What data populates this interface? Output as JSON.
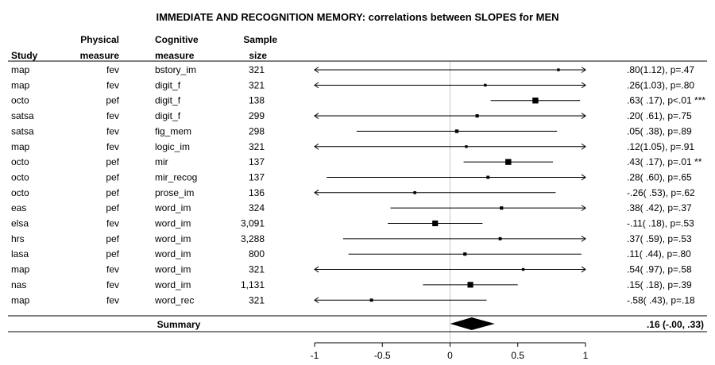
{
  "chart_data": {
    "type": "forest",
    "title": "IMMEDIATE AND RECOGNITION MEMORY: correlations between SLOPES for MEN",
    "headers": {
      "study": "Study",
      "physical": [
        "Physical",
        "measure"
      ],
      "cognitive": [
        "Cognitive",
        "measure"
      ],
      "sample": [
        "Sample",
        "size"
      ]
    },
    "xlim": [
      -1,
      1
    ],
    "ticks": [
      {
        "value": -1,
        "label": "-1"
      },
      {
        "value": -0.5,
        "label": "-0.5"
      },
      {
        "value": 0,
        "label": "0"
      },
      {
        "value": 0.5,
        "label": "0.5"
      },
      {
        "value": 1,
        "label": "1"
      }
    ],
    "rows": [
      {
        "study": "map",
        "physical": "fev",
        "cognitive": "bstory_im",
        "n": "321",
        "est": 0.8,
        "lo": -1.0,
        "hi": 1.0,
        "arrow_left": true,
        "arrow_right": true,
        "weight": 0.15,
        "label": ".80(1.12), p=.47"
      },
      {
        "study": "map",
        "physical": "fev",
        "cognitive": "digit_f",
        "n": "321",
        "est": 0.26,
        "lo": -1.0,
        "hi": 1.0,
        "arrow_left": true,
        "arrow_right": true,
        "weight": 0.15,
        "label": ".26(1.03), p=.80"
      },
      {
        "study": "octo",
        "physical": "pef",
        "cognitive": "digit_f",
        "n": "138",
        "est": 0.63,
        "lo": 0.3,
        "hi": 0.96,
        "arrow_left": false,
        "arrow_right": false,
        "weight": 0.9,
        "label": ".63( .17), p<.01 ***"
      },
      {
        "study": "satsa",
        "physical": "fev",
        "cognitive": "digit_f",
        "n": "299",
        "est": 0.2,
        "lo": -1.0,
        "hi": 1.0,
        "arrow_left": true,
        "arrow_right": true,
        "weight": 0.3,
        "label": ".20( .61), p=.75"
      },
      {
        "study": "satsa",
        "physical": "fev",
        "cognitive": "fig_mem",
        "n": "298",
        "est": 0.05,
        "lo": -0.69,
        "hi": 0.79,
        "arrow_left": false,
        "arrow_right": false,
        "weight": 0.35,
        "label": ".05( .38), p=.89"
      },
      {
        "study": "map",
        "physical": "fev",
        "cognitive": "logic_im",
        "n": "321",
        "est": 0.12,
        "lo": -1.0,
        "hi": 1.0,
        "arrow_left": true,
        "arrow_right": true,
        "weight": 0.15,
        "label": ".12(1.05), p=.91"
      },
      {
        "study": "octo",
        "physical": "pef",
        "cognitive": "mir",
        "n": "137",
        "est": 0.43,
        "lo": 0.1,
        "hi": 0.76,
        "arrow_left": false,
        "arrow_right": false,
        "weight": 0.9,
        "label": ".43( .17), p=.01 **"
      },
      {
        "study": "octo",
        "physical": "pef",
        "cognitive": "mir_recog",
        "n": "137",
        "est": 0.28,
        "lo": -0.91,
        "hi": 1.0,
        "arrow_left": false,
        "arrow_right": true,
        "weight": 0.25,
        "label": ".28( .60), p=.65"
      },
      {
        "study": "octo",
        "physical": "pef",
        "cognitive": "prose_im",
        "n": "136",
        "est": -0.26,
        "lo": -1.0,
        "hi": 0.78,
        "arrow_left": true,
        "arrow_right": false,
        "weight": 0.2,
        "label": "-.26( .53), p=.62"
      },
      {
        "study": "eas",
        "physical": "pef",
        "cognitive": "word_im",
        "n": "324",
        "est": 0.38,
        "lo": -0.44,
        "hi": 1.0,
        "arrow_left": false,
        "arrow_right": true,
        "weight": 0.3,
        "label": ".38( .42), p=.37"
      },
      {
        "study": "elsa",
        "physical": "fev",
        "cognitive": "word_im",
        "n": "3,091",
        "est": -0.11,
        "lo": -0.46,
        "hi": 0.24,
        "arrow_left": false,
        "arrow_right": false,
        "weight": 0.85,
        "label": "-.11( .18), p=.53"
      },
      {
        "study": "hrs",
        "physical": "pef",
        "cognitive": "word_im",
        "n": "3,288",
        "est": 0.37,
        "lo": -0.79,
        "hi": 1.0,
        "arrow_left": false,
        "arrow_right": true,
        "weight": 0.25,
        "label": ".37( .59), p=.53"
      },
      {
        "study": "lasa",
        "physical": "pef",
        "cognitive": "word_im",
        "n": "800",
        "est": 0.11,
        "lo": -0.75,
        "hi": 0.97,
        "arrow_left": false,
        "arrow_right": false,
        "weight": 0.3,
        "label": ".11( .44), p=.80"
      },
      {
        "study": "map",
        "physical": "fev",
        "cognitive": "word_im",
        "n": "321",
        "est": 0.54,
        "lo": -1.0,
        "hi": 1.0,
        "arrow_left": true,
        "arrow_right": true,
        "weight": 0.15,
        "label": ".54( .97), p=.58"
      },
      {
        "study": "nas",
        "physical": "fev",
        "cognitive": "word_im",
        "n": "1,131",
        "est": 0.15,
        "lo": -0.2,
        "hi": 0.5,
        "arrow_left": false,
        "arrow_right": false,
        "weight": 0.85,
        "label": ".15( .18), p=.39"
      },
      {
        "study": "map",
        "physical": "fev",
        "cognitive": "word_rec",
        "n": "321",
        "est": -0.58,
        "lo": -1.0,
        "hi": 0.27,
        "arrow_left": true,
        "arrow_right": false,
        "weight": 0.25,
        "label": "-.58( .43), p=.18"
      }
    ],
    "summary": {
      "label": "Summary",
      "est": 0.16,
      "lo": -0.0,
      "hi": 0.33,
      "text": ".16 (-.00, .33)"
    }
  }
}
